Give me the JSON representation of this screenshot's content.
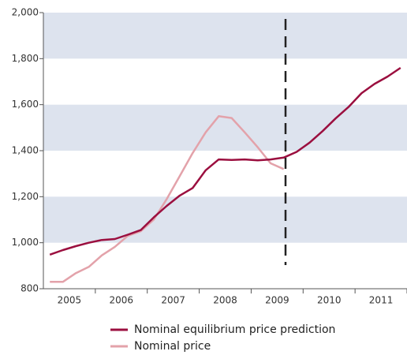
{
  "chart_data": {
    "type": "line",
    "categories": [
      "2005",
      "2006",
      "2007",
      "2008",
      "2009",
      "2010",
      "2011"
    ],
    "x": [
      2005.125,
      2005.375,
      2005.625,
      2005.875,
      2006.125,
      2006.375,
      2006.625,
      2006.875,
      2007.125,
      2007.375,
      2007.625,
      2007.875,
      2008.125,
      2008.375,
      2008.625,
      2008.875,
      2009.125,
      2009.375,
      2009.625,
      2009.875,
      2010.125,
      2010.375,
      2010.625,
      2010.875,
      2011.125,
      2011.375,
      2011.625,
      2011.875
    ],
    "xlim": [
      2005,
      2012
    ],
    "series": [
      {
        "name": "Nominal equilibrium price prediction",
        "color": "#9b0f3f",
        "values": [
          948,
          968,
          985,
          1000,
          1012,
          1016,
          1035,
          1055,
          1110,
          1160,
          1205,
          1238,
          1315,
          1362,
          1360,
          1362,
          1358,
          1362,
          1370,
          1395,
          1435,
          1485,
          1540,
          1590,
          1650,
          1690,
          1722,
          1760
        ]
      },
      {
        "name": "Nominal price",
        "color": "#e3a2aa",
        "values": [
          830,
          830,
          868,
          895,
          945,
          982,
          1030,
          1050,
          1100,
          1190,
          1290,
          1390,
          1480,
          1550,
          1542,
          1480,
          1415,
          1345,
          1320,
          null,
          null,
          null,
          null,
          null,
          null,
          null,
          null,
          null
        ]
      }
    ],
    "ylim": [
      800,
      2000
    ],
    "yticks": [
      {
        "value": 800,
        "label": "800"
      },
      {
        "value": 1000,
        "label": "1,000"
      },
      {
        "value": 1200,
        "label": "1,200"
      },
      {
        "value": 1400,
        "label": "1,400"
      },
      {
        "value": 1600,
        "label": "1,600"
      },
      {
        "value": 1800,
        "label": "1,800"
      },
      {
        "value": 2000,
        "label": "2,000"
      }
    ],
    "band_color": "#dde3ee"
  }
}
